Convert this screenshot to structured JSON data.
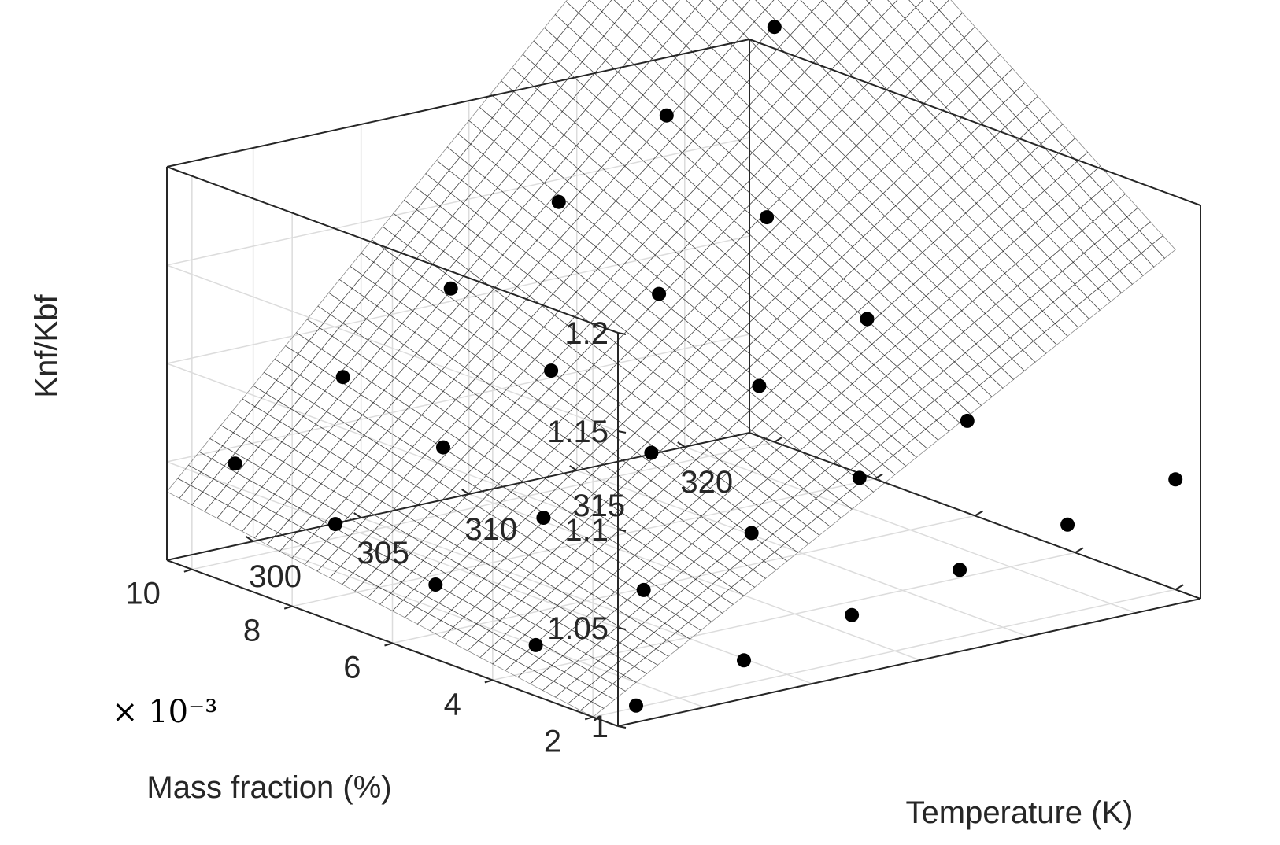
{
  "chart_data": {
    "type": "surface",
    "zlabel": "Knf/Kbf",
    "xlabel": "Temperature (K)",
    "ylabel": "Mass fraction (%)",
    "y_multiplier": "× 10⁻³",
    "x_ticks": [
      "300",
      "305",
      "310",
      "315",
      "320"
    ],
    "y_ticks": [
      "2",
      "4",
      "6",
      "8",
      "10"
    ],
    "z_ticks": [
      "1",
      "1.05",
      "1.1",
      "1.15",
      "1.2"
    ],
    "xlim": [
      296,
      323
    ],
    "ylim": [
      1.5,
      10.5
    ],
    "zlim": [
      1.0,
      1.2
    ],
    "grid": true,
    "surface": {
      "description": "fitted surface z = 1 + 0.0064*(T-296) + 0.0041*(w-2) + 0.00055*(T-296)*(w-2)",
      "colormap": "parula",
      "corner_values": [
        {
          "temperature": 296,
          "mass_fraction": 2,
          "z": 0.99
        },
        {
          "temperature": 323,
          "mass_fraction": 2,
          "z": 1.04
        },
        {
          "temperature": 296,
          "mass_fraction": 10.5,
          "z": 1.05
        },
        {
          "temperature": 323,
          "mass_fraction": 10.5,
          "z": 1.29
        }
      ]
    },
    "series": [
      {
        "name": "",
        "points": [
          {
            "temperature": 298,
            "mass_fraction": 2,
            "z": 1.001
          },
          {
            "temperature": 303,
            "mass_fraction": 2,
            "z": 1.012
          },
          {
            "temperature": 308,
            "mass_fraction": 2,
            "z": 1.023
          },
          {
            "temperature": 313,
            "mass_fraction": 2,
            "z": 1.034
          },
          {
            "temperature": 318,
            "mass_fraction": 2,
            "z": 1.045
          },
          {
            "temperature": 323,
            "mass_fraction": 2,
            "z": 1.056
          },
          {
            "temperature": 298,
            "mass_fraction": 4,
            "z": 1.013
          },
          {
            "temperature": 303,
            "mass_fraction": 4,
            "z": 1.029
          },
          {
            "temperature": 308,
            "mass_fraction": 4,
            "z": 1.046
          },
          {
            "temperature": 313,
            "mass_fraction": 4,
            "z": 1.062
          },
          {
            "temperature": 318,
            "mass_fraction": 4,
            "z": 1.079
          },
          {
            "temperature": 298,
            "mass_fraction": 6,
            "z": 1.025
          },
          {
            "temperature": 303,
            "mass_fraction": 6,
            "z": 1.047
          },
          {
            "temperature": 308,
            "mass_fraction": 6,
            "z": 1.068
          },
          {
            "temperature": 313,
            "mass_fraction": 6,
            "z": 1.09
          },
          {
            "temperature": 318,
            "mass_fraction": 6,
            "z": 1.112
          },
          {
            "temperature": 298,
            "mass_fraction": 8,
            "z": 1.037
          },
          {
            "temperature": 303,
            "mass_fraction": 8,
            "z": 1.064
          },
          {
            "temperature": 308,
            "mass_fraction": 8,
            "z": 1.091
          },
          {
            "temperature": 313,
            "mass_fraction": 8,
            "z": 1.118
          },
          {
            "temperature": 318,
            "mass_fraction": 8,
            "z": 1.145
          },
          {
            "temperature": 298,
            "mass_fraction": 10,
            "z": 1.049
          },
          {
            "temperature": 303,
            "mass_fraction": 10,
            "z": 1.081
          },
          {
            "temperature": 308,
            "mass_fraction": 10,
            "z": 1.114
          },
          {
            "temperature": 313,
            "mass_fraction": 10,
            "z": 1.146
          },
          {
            "temperature": 318,
            "mass_fraction": 10,
            "z": 1.178
          },
          {
            "temperature": 323,
            "mass_fraction": 10,
            "z": 1.211
          }
        ]
      }
    ]
  }
}
